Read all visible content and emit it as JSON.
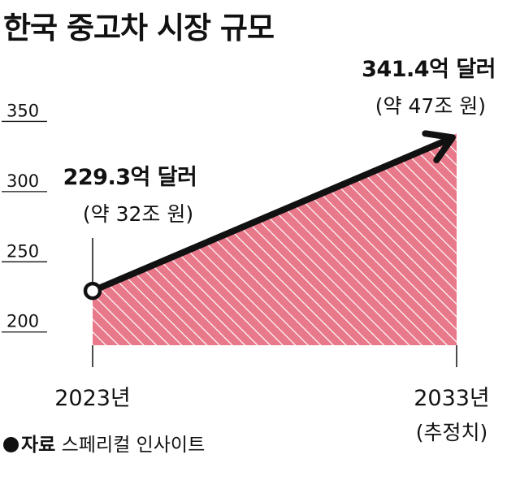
{
  "title": "한국 중고차 시장 규모",
  "chart_data": {
    "type": "area",
    "title": "한국 중고차 시장 규모",
    "unit": "억 달러",
    "y_ticks": [
      200,
      250,
      300,
      350
    ],
    "ylim": [
      190,
      352
    ],
    "x": [
      "2023년",
      "2033년"
    ],
    "values": [
      229.3,
      341.4
    ],
    "point_labels": [
      {
        "value": "229.3억 달러",
        "note": "(약 32조 원)"
      },
      {
        "value": "341.4억 달러",
        "note": "(약 47조 원)"
      }
    ],
    "x_notes": [
      "",
      "(추정치)"
    ],
    "fill_color": "#e8798a",
    "hatch_color": "#ffffff",
    "line_color": "#111111"
  },
  "source": {
    "label": "자료",
    "text": "스페리컬 인사이트"
  }
}
